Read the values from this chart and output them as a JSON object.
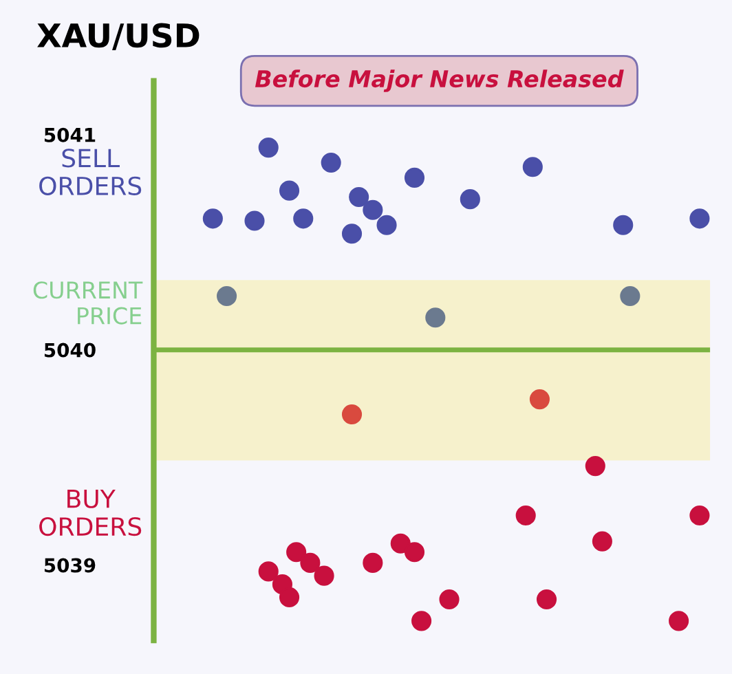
{
  "chart_data": {
    "type": "scatter",
    "title": "XAU/USD",
    "annotations": [
      "Before Major News Released"
    ],
    "categories": [
      null,
      null,
      null,
      null,
      null,
      null,
      null,
      null,
      null,
      null,
      null,
      null,
      null,
      null,
      null,
      null,
      null,
      null,
      null,
      null,
      null,
      null,
      null,
      null,
      null,
      null,
      null,
      null,
      null,
      null,
      null,
      null,
      null,
      null,
      null,
      null,
      null,
      null,
      null,
      null,
      null,
      null,
      null,
      null,
      null,
      null,
      null,
      null,
      null,
      null,
      null,
      null,
      null,
      null,
      null,
      null,
      null,
      null,
      null,
      null,
      null,
      null,
      null,
      null,
      null,
      null,
      null,
      null,
      null,
      null,
      null,
      null,
      null,
      null,
      null,
      null,
      null,
      null,
      null,
      null
    ],
    "ylim": [
      5038.65,
      5041.25
    ],
    "yticks": [
      5039,
      5040,
      5041
    ],
    "tick_labels": "y",
    "grid": false,
    "legend": false,
    "marker": "circle",
    "bands": [
      {
        "axis": "y",
        "from": 5039.49,
        "to": 5040.32,
        "label": "CURRENT PRICE",
        "color": "#f6f1cc"
      }
    ],
    "ref_lines": [
      {
        "axis": "y",
        "value": 5040,
        "color": "#7cb342",
        "line_style": "solid"
      }
    ],
    "series": [
      {
        "name": "SELL ORDERS",
        "color": "#4a4fa8",
        "values": [
          null,
          null,
          null,
          null,
          null,
          null,
          null,
          null,
          5040.61,
          null,
          null,
          null,
          null,
          null,
          5040.6,
          null,
          5040.94,
          null,
          null,
          5040.74,
          null,
          5040.61,
          null,
          null,
          null,
          5040.87,
          null,
          null,
          5040.54,
          5040.71,
          null,
          5040.65,
          null,
          5040.58,
          null,
          null,
          null,
          5040.8,
          null,
          null,
          null,
          null,
          null,
          null,
          null,
          5040.7,
          null,
          null,
          null,
          null,
          null,
          null,
          null,
          null,
          5040.85,
          null,
          null,
          null,
          null,
          null,
          null,
          null,
          null,
          null,
          null,
          null,
          null,
          5040.58,
          null,
          null,
          null,
          null,
          null,
          null,
          null,
          null,
          null,
          null,
          5040.61,
          null
        ]
      },
      {
        "color": "#6b7a8f",
        "values": [
          null,
          null,
          null,
          null,
          null,
          null,
          null,
          null,
          null,
          null,
          5040.25,
          null,
          null,
          null,
          null,
          null,
          null,
          null,
          null,
          null,
          null,
          null,
          null,
          null,
          null,
          null,
          null,
          null,
          null,
          null,
          null,
          null,
          null,
          null,
          null,
          null,
          null,
          null,
          null,
          null,
          5040.15,
          null,
          null,
          null,
          null,
          null,
          null,
          null,
          null,
          null,
          null,
          null,
          null,
          null,
          null,
          null,
          null,
          null,
          null,
          null,
          null,
          null,
          null,
          null,
          null,
          null,
          null,
          null,
          5040.25,
          null,
          null,
          null,
          null,
          null,
          null,
          null,
          null,
          null,
          null,
          null
        ]
      },
      {
        "color": "#d94a3f",
        "values": [
          null,
          null,
          null,
          null,
          null,
          null,
          null,
          null,
          null,
          null,
          null,
          null,
          null,
          null,
          null,
          null,
          null,
          null,
          null,
          null,
          null,
          null,
          null,
          null,
          null,
          null,
          null,
          null,
          5039.7,
          null,
          null,
          null,
          null,
          null,
          null,
          null,
          null,
          null,
          null,
          null,
          null,
          null,
          null,
          null,
          null,
          null,
          null,
          null,
          null,
          null,
          null,
          null,
          null,
          null,
          null,
          5039.77,
          null,
          null,
          null,
          null,
          null,
          null,
          null,
          null,
          null,
          null,
          null,
          null,
          null,
          null,
          null,
          null,
          null,
          null,
          null,
          null,
          null,
          null,
          null,
          null
        ]
      },
      {
        "name": "BUY ORDERS",
        "color": "#c8103e",
        "values": [
          null,
          null,
          null,
          null,
          null,
          null,
          null,
          null,
          null,
          null,
          null,
          null,
          null,
          null,
          null,
          null,
          5038.97,
          null,
          5038.91,
          5038.85,
          5039.06,
          null,
          5039.01,
          null,
          5038.95,
          null,
          null,
          null,
          null,
          null,
          null,
          5039.01,
          null,
          null,
          null,
          5039.1,
          null,
          5039.06,
          5038.74,
          null,
          null,
          null,
          5038.84,
          null,
          null,
          null,
          null,
          null,
          null,
          null,
          null,
          null,
          null,
          5039.23,
          null,
          null,
          5038.84,
          null,
          null,
          null,
          null,
          null,
          null,
          5039.46,
          5039.11,
          null,
          null,
          null,
          null,
          null,
          null,
          null,
          null,
          null,
          null,
          5038.74,
          null,
          null,
          5039.23,
          null
        ]
      }
    ]
  }
}
